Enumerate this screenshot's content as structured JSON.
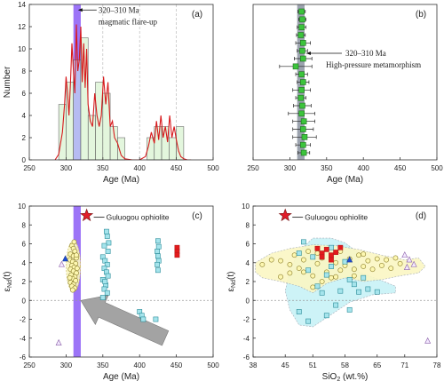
{
  "chart_data": [
    {
      "panel": "a",
      "type": "bar",
      "panel_label": "(a)",
      "xlabel": "Age (Ma)",
      "ylabel": "Number",
      "xlim": [
        250,
        500
      ],
      "ylim": [
        0,
        14
      ],
      "xticks": [
        250,
        300,
        350,
        400,
        450,
        500
      ],
      "yticks": [
        0,
        2,
        4,
        6,
        8,
        10,
        12,
        14
      ],
      "dashed_reference_lines_x": [
        350,
        400,
        450
      ],
      "highlight_band": {
        "from": 310,
        "to": 320,
        "color": "#8b5cf6"
      },
      "annotation": {
        "text_line1": "320–310 Ma",
        "text_line2": "magmatic flare-up",
        "x": 315,
        "y": 13.5
      },
      "histogram": {
        "bin_starts": [
          290,
          300,
          310,
          320,
          330,
          340,
          350,
          360,
          370,
          380,
          390,
          400,
          410,
          420,
          430,
          440,
          450
        ],
        "bin_width": 10,
        "counts": [
          5,
          7,
          9,
          11,
          4,
          7,
          6,
          3,
          2,
          0,
          0,
          0,
          2,
          3,
          3,
          2,
          3
        ],
        "highlight_bins": [
          310
        ]
      },
      "density_curve": {
        "x": [
          285,
          290,
          295,
          298,
          300,
          302,
          304,
          306,
          308,
          310,
          312,
          314,
          316,
          318,
          320,
          322,
          324,
          326,
          328,
          330,
          333,
          336,
          339,
          342,
          345,
          348,
          351,
          354,
          357,
          360,
          363,
          366,
          370,
          375,
          380,
          390,
          400,
          408,
          412,
          416,
          420,
          423,
          426,
          429,
          432,
          435,
          438,
          441,
          444,
          447,
          450,
          453,
          456,
          460,
          465,
          470
        ],
        "y": [
          0,
          0.5,
          2.5,
          5,
          7.5,
          6,
          4,
          7,
          10.5,
          8,
          6,
          12.2,
          8,
          9,
          12,
          7,
          10.5,
          6.5,
          10,
          5,
          3.5,
          3,
          6,
          4,
          3,
          4,
          7.5,
          5,
          7,
          3,
          3.5,
          2,
          1.5,
          0.4,
          0.1,
          0,
          0,
          0.3,
          1.2,
          2.5,
          1.5,
          3.5,
          1.8,
          4,
          2,
          3,
          1.6,
          4,
          2,
          3,
          1.8,
          0.8,
          0.3,
          0.1,
          0,
          0
        ]
      }
    },
    {
      "panel": "b",
      "type": "scatter",
      "panel_label": "(b)",
      "xlabel": "Age (Ma)",
      "xlim": [
        250,
        500
      ],
      "xticks": [
        250,
        300,
        350,
        400,
        450,
        500
      ],
      "highlight_band": {
        "from": 310,
        "to": 320,
        "color": "#9ca3af"
      },
      "annotation": {
        "text_line1": "320–310 Ma",
        "text_line2": "High-pressure metamorphism",
        "x": 320
      },
      "points": [
        {
          "age": 316,
          "err": 5
        },
        {
          "age": 317,
          "err": 5
        },
        {
          "age": 316,
          "err": 6
        },
        {
          "age": 315,
          "err": 6
        },
        {
          "age": 318,
          "err": 10
        },
        {
          "age": 317,
          "err": 7
        },
        {
          "age": 318,
          "err": 12
        },
        {
          "age": 308,
          "err": 22
        },
        {
          "age": 316,
          "err": 8
        },
        {
          "age": 318,
          "err": 8
        },
        {
          "age": 316,
          "err": 12
        },
        {
          "age": 315,
          "err": 7
        },
        {
          "age": 317,
          "err": 12
        },
        {
          "age": 316,
          "err": 18
        },
        {
          "age": 319,
          "err": 15
        },
        {
          "age": 318,
          "err": 14
        },
        {
          "age": 320,
          "err": 16
        },
        {
          "age": 318,
          "err": 10
        },
        {
          "age": 319,
          "err": 8
        }
      ]
    },
    {
      "panel": "c",
      "type": "scatter",
      "panel_label": "(c)",
      "xlabel": "Age (Ma)",
      "ylabel_main": "ε",
      "ylabel_sub": "Nd",
      "ylabel_tail": "(t)",
      "xlim": [
        250,
        500
      ],
      "ylim": [
        -6,
        10
      ],
      "xticks": [
        250,
        300,
        350,
        400,
        450,
        500
      ],
      "yticks": [
        -6,
        -4,
        -2,
        0,
        2,
        4,
        6,
        8,
        10
      ],
      "zero_line": 0,
      "highlight_band": {
        "from": 310,
        "to": 320,
        "color": "#8b5cf6"
      },
      "star": {
        "x": 328,
        "y": 9,
        "label": "Guluogou ophiolite"
      },
      "arrow": {
        "from": [
          435,
          -4
        ],
        "to": [
          320,
          0
        ]
      },
      "series": [
        {
          "marker": "circle",
          "color": "#fdf7b0",
          "points": [
            [
              308,
              5.8
            ],
            [
              310,
              5.5
            ],
            [
              312,
              5.2
            ],
            [
              306,
              4.9
            ],
            [
              310,
              4.7
            ],
            [
              314,
              4.5
            ],
            [
              305,
              4.3
            ],
            [
              309,
              4.1
            ],
            [
              313,
              3.9
            ],
            [
              308,
              3.7
            ],
            [
              311,
              3.5
            ],
            [
              306,
              3.3
            ],
            [
              310,
              3.1
            ],
            [
              314,
              2.9
            ],
            [
              307,
              2.7
            ],
            [
              312,
              2.5
            ],
            [
              309,
              2.3
            ],
            [
              313,
              2.1
            ],
            [
              306,
              1.9
            ],
            [
              310,
              1.7
            ],
            [
              308,
              1.5
            ],
            [
              312,
              1.3
            ],
            [
              309,
              1.1
            ],
            [
              314,
              4.8
            ],
            [
              315,
              3.4
            ],
            [
              305,
              2.4
            ],
            [
              311,
              6.2
            ]
          ]
        },
        {
          "marker": "square",
          "color": "#a5e4ec",
          "points": [
            [
              355,
              7.3
            ],
            [
              356,
              6.8
            ],
            [
              358,
              6.1
            ],
            [
              352,
              5.8
            ],
            [
              357,
              5.2
            ],
            [
              350,
              4.6
            ],
            [
              353,
              4.2
            ],
            [
              356,
              3.8
            ],
            [
              352,
              3.4
            ],
            [
              355,
              3.0
            ],
            [
              357,
              2.6
            ],
            [
              350,
              2.2
            ],
            [
              354,
              1.6
            ],
            [
              352,
              1.2
            ],
            [
              356,
              0.8
            ],
            [
              350,
              0.3
            ],
            [
              353,
              2.0
            ],
            [
              425,
              6.3
            ],
            [
              426,
              5.7
            ],
            [
              424,
              5.2
            ],
            [
              425,
              4.7
            ],
            [
              426,
              4.2
            ],
            [
              424,
              3.8
            ],
            [
              425,
              3.2
            ],
            [
              400,
              -1.2
            ],
            [
              403,
              -1.6
            ],
            [
              405,
              -2.0
            ],
            [
              422,
              -2.0
            ]
          ]
        },
        {
          "marker": "square",
          "color": "#e31a1c",
          "points": [
            [
              451,
              5.6
            ],
            [
              451,
              5.2
            ],
            [
              451,
              4.8
            ]
          ]
        },
        {
          "marker": "triangle",
          "color": "#1d4ed8",
          "points": [
            [
              299,
              4.4
            ]
          ]
        },
        {
          "marker": "triangle",
          "color": "#f3e8ff",
          "points": [
            [
              294,
              3.8
            ],
            [
              290,
              -4.5
            ]
          ]
        }
      ]
    },
    {
      "panel": "d",
      "type": "scatter",
      "panel_label": "(d)",
      "xlabel_main": "SiO",
      "xlabel_sub": "2",
      "xlabel_tail": " (wt.%)",
      "ylabel_main": "ε",
      "ylabel_sub": "Nd",
      "ylabel_tail": "(t)",
      "xlim": [
        38,
        78
      ],
      "ylim": [
        -6,
        10
      ],
      "xticks": [
        38,
        45,
        51,
        58,
        65,
        71,
        78
      ],
      "xticklabels": [
        "38",
        "45",
        "51",
        "58",
        "65",
        "71",
        "78"
      ],
      "yticks": [
        -6,
        -4,
        -2,
        0,
        2,
        4,
        6,
        8,
        10
      ],
      "zero_line": 0,
      "star": {
        "x": 45,
        "y": 9,
        "label": "Guluogou ophiolite"
      },
      "fields": [
        {
          "name": "cyan-field",
          "color": "#c8f2f7",
          "outline": [
            [
              46,
              3.2
            ],
            [
              48,
              5.2
            ],
            [
              51,
              6.6
            ],
            [
              55,
              6.6
            ],
            [
              58,
              6.1
            ],
            [
              61,
              5.0
            ],
            [
              61,
              3.0
            ],
            [
              66,
              2.1
            ],
            [
              69,
              1.5
            ],
            [
              69,
              0.8
            ],
            [
              64,
              0.6
            ],
            [
              59,
              -0.2
            ],
            [
              55,
              -1.5
            ],
            [
              51,
              -2.8
            ],
            [
              48,
              -2.6
            ],
            [
              46,
              -1.0
            ],
            [
              45,
              1.0
            ]
          ]
        },
        {
          "name": "yellow-field",
          "color": "#fbf7c4",
          "outline": [
            [
              38.5,
              4.0
            ],
            [
              42,
              5.0
            ],
            [
              46,
              5.5
            ],
            [
              51,
              5.9
            ],
            [
              56,
              5.8
            ],
            [
              61,
              5.4
            ],
            [
              66,
              4.8
            ],
            [
              69,
              4.5
            ],
            [
              71,
              4.3
            ],
            [
              74,
              4.5
            ],
            [
              75.5,
              3.6
            ],
            [
              74,
              2.9
            ],
            [
              70,
              2.6
            ],
            [
              66,
              2.2
            ],
            [
              62,
              2.0
            ],
            [
              58,
              2.4
            ],
            [
              54,
              1.8
            ],
            [
              51,
              0.8
            ],
            [
              48,
              1.5
            ],
            [
              44,
              2.0
            ],
            [
              40,
              2.4
            ],
            [
              38.5,
              3.0
            ]
          ]
        }
      ],
      "series": [
        {
          "marker": "circle",
          "color": "#fdf7b0",
          "points": [
            [
              40,
              3.8
            ],
            [
              42,
              4.3
            ],
            [
              44,
              4.2
            ],
            [
              46,
              3.8
            ],
            [
              47,
              4.8
            ],
            [
              48,
              3.4
            ],
            [
              49,
              4.3
            ],
            [
              50,
              5.2
            ],
            [
              51,
              2.6
            ],
            [
              52,
              3.9
            ],
            [
              53,
              4.5
            ],
            [
              54,
              3.0
            ],
            [
              55,
              2.4
            ],
            [
              56,
              4.0
            ],
            [
              57,
              3.2
            ],
            [
              58,
              3.7
            ],
            [
              59,
              4.4
            ],
            [
              60,
              3.3
            ],
            [
              61,
              4.8
            ],
            [
              62,
              3.6
            ],
            [
              63,
              4.2
            ],
            [
              64,
              3.3
            ],
            [
              65,
              4.4
            ],
            [
              66,
              3.7
            ],
            [
              67,
              4.3
            ],
            [
              68,
              3.4
            ],
            [
              69,
              4.5
            ],
            [
              70,
              3.9
            ],
            [
              51,
              1.4
            ],
            [
              53,
              2.0
            ],
            [
              56,
              2.5
            ],
            [
              60,
              2.6
            ],
            [
              46,
              2.9
            ],
            [
              49,
              3.0
            ],
            [
              52,
              5.0
            ],
            [
              57,
              5.2
            ],
            [
              44,
              2.5
            ],
            [
              62,
              4.9
            ]
          ]
        },
        {
          "marker": "square",
          "color": "#a5e4ec",
          "points": [
            [
              48,
              5.0
            ],
            [
              49,
              6.2
            ],
            [
              50,
              3.2
            ],
            [
              51,
              4.6
            ],
            [
              52,
              1.5
            ],
            [
              53,
              0.8
            ],
            [
              54,
              2.7
            ],
            [
              55,
              3.6
            ],
            [
              56,
              -0.5
            ],
            [
              57,
              1.0
            ],
            [
              58,
              4.1
            ],
            [
              59,
              2.2
            ],
            [
              60,
              1.7
            ],
            [
              61,
              0.9
            ],
            [
              59,
              -1.0
            ],
            [
              63,
              1.2
            ],
            [
              65,
              0.9
            ],
            [
              48,
              -1.2
            ],
            [
              50,
              -2.2
            ],
            [
              54,
              -1.6
            ],
            [
              62,
              2.4
            ],
            [
              55,
              5.6
            ]
          ]
        },
        {
          "marker": "square",
          "color": "#e31a1c",
          "points": [
            [
              52,
              5.5
            ],
            [
              53,
              5.0
            ],
            [
              54,
              5.4
            ],
            [
              55,
              4.8
            ],
            [
              56,
              5.1
            ],
            [
              57,
              5.6
            ],
            [
              55,
              4.3
            ],
            [
              53,
              4.6
            ]
          ]
        },
        {
          "marker": "triangle",
          "color": "#1d4ed8",
          "points": [
            [
              59,
              4.3
            ]
          ]
        },
        {
          "marker": "triangle",
          "color": "#f3e8ff",
          "points": [
            [
              71,
              4.8
            ],
            [
              72,
              4.3
            ],
            [
              73,
              3.8
            ],
            [
              71.5,
              3.5
            ],
            [
              76,
              -4.3
            ]
          ]
        }
      ]
    }
  ]
}
